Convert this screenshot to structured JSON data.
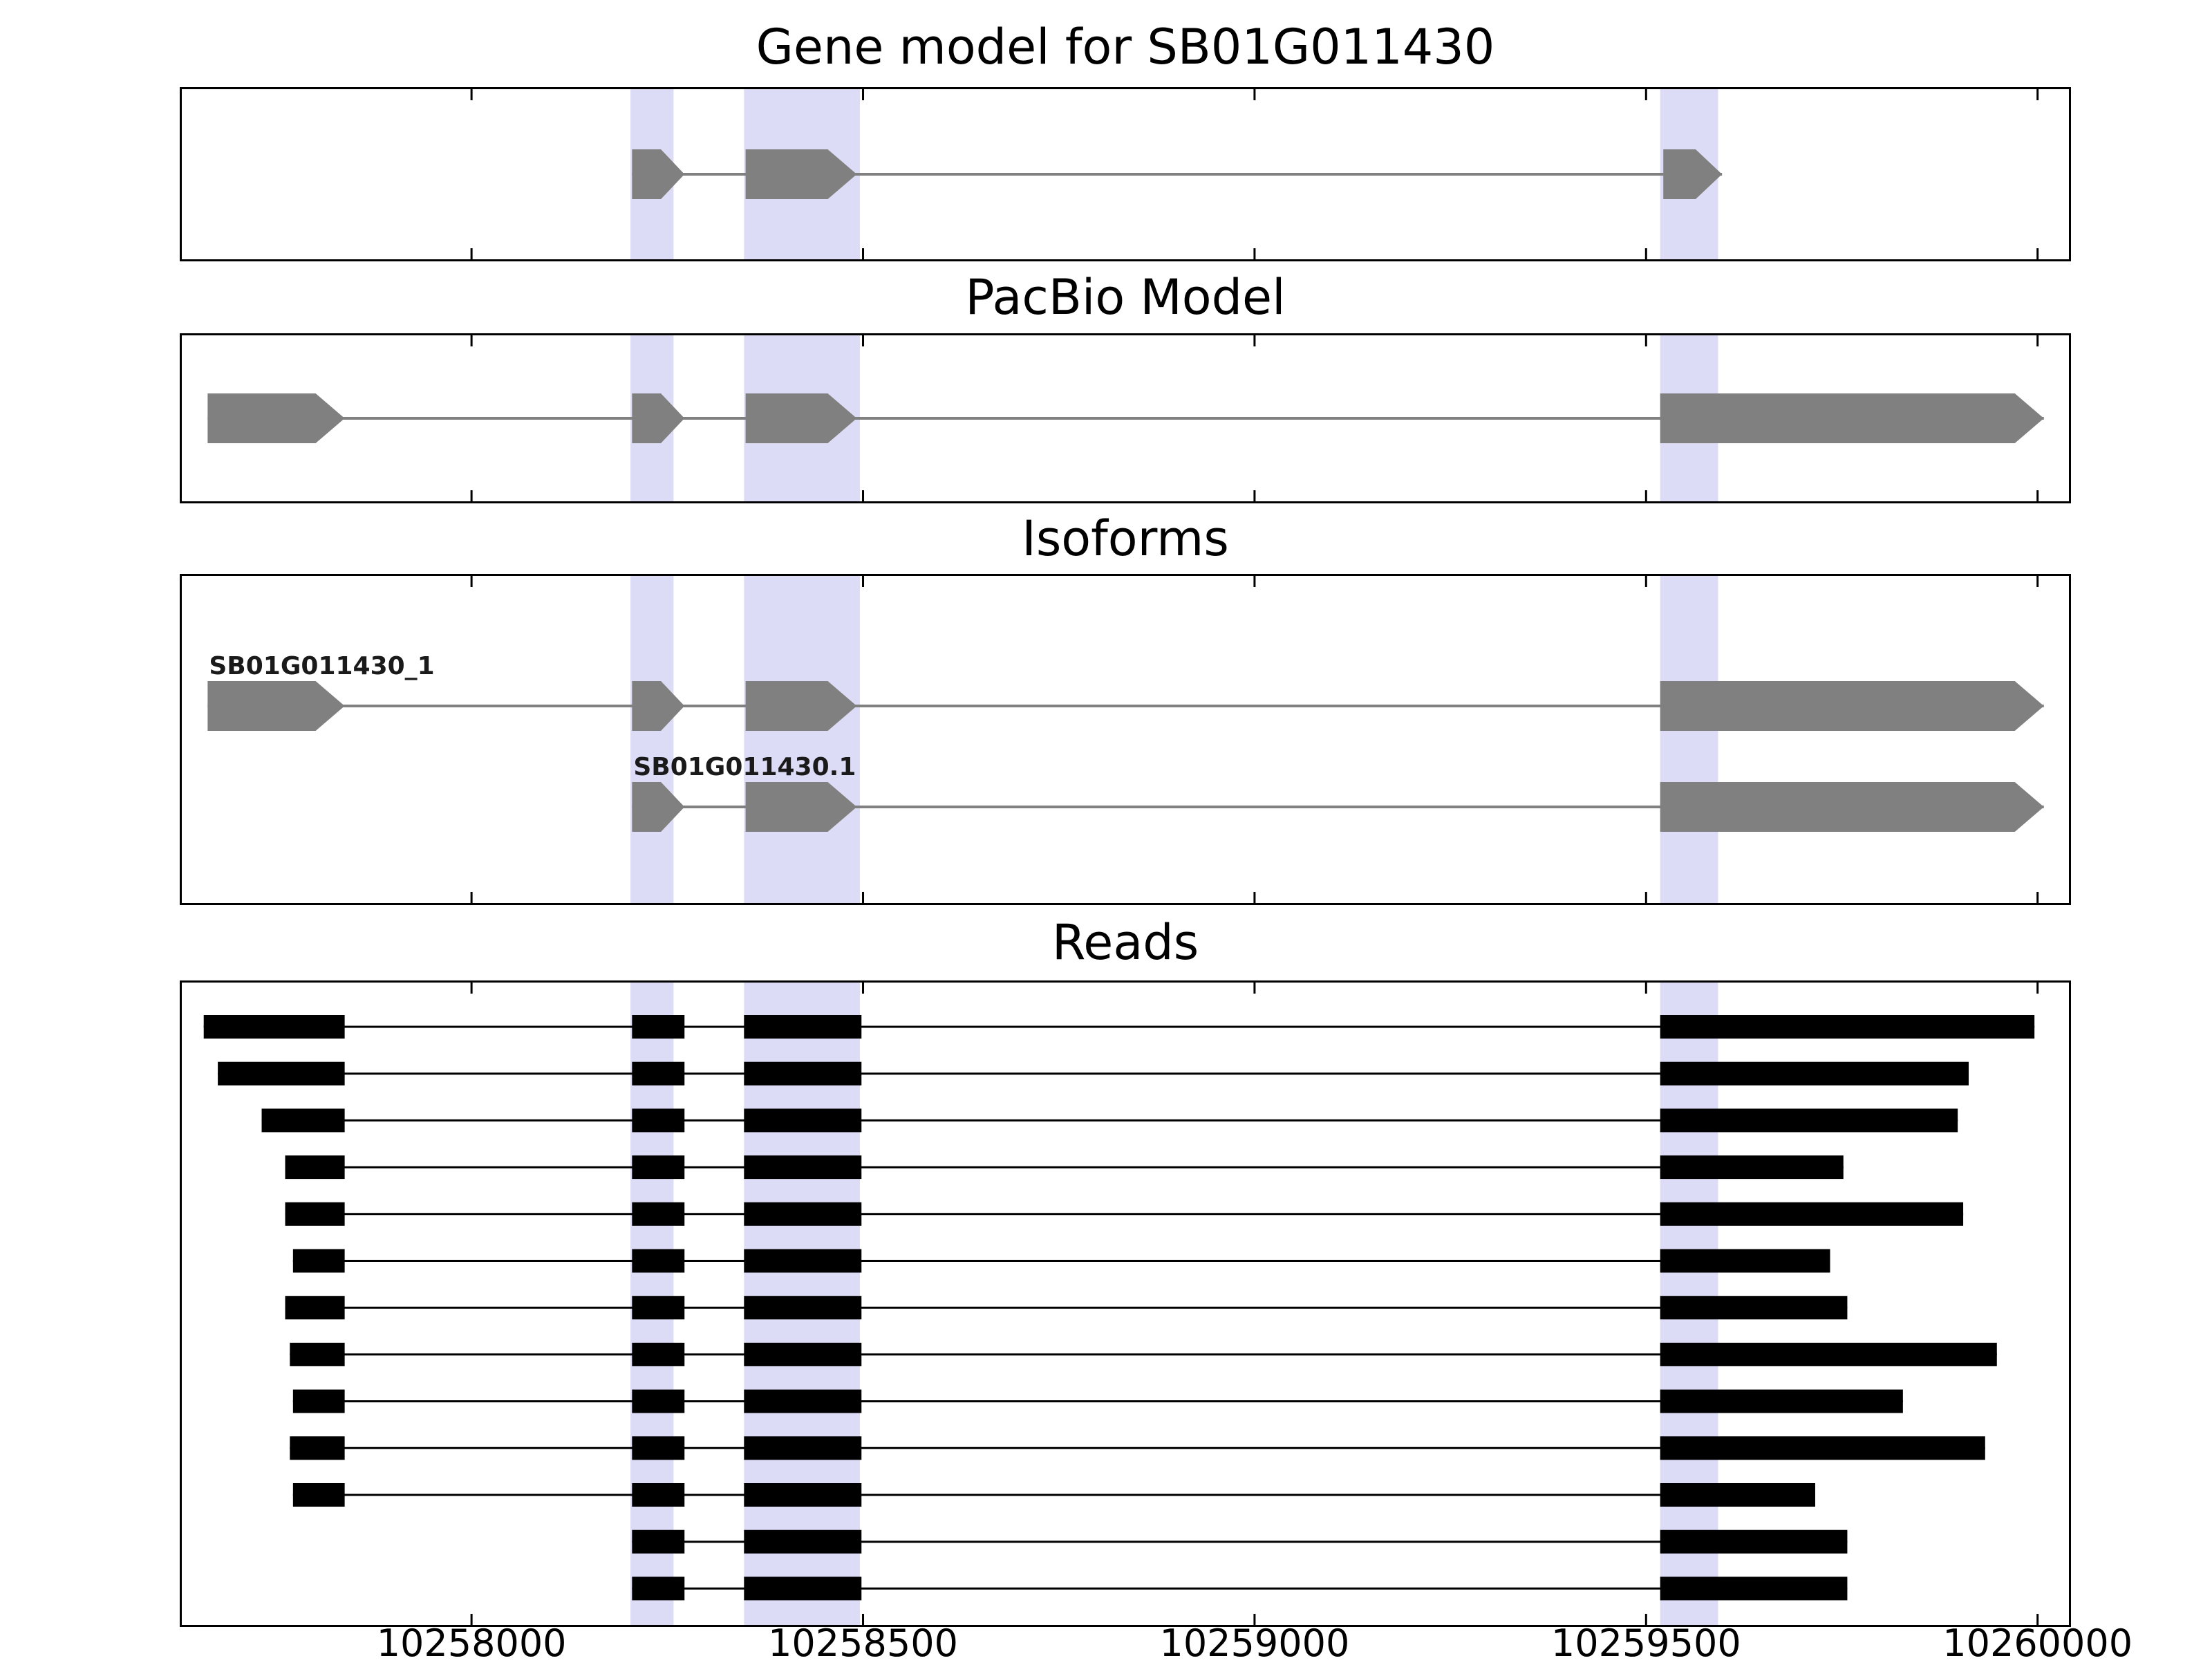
{
  "figure": {
    "background": "#ffffff"
  },
  "chart_data": {
    "type": "gene-model-tracks",
    "xlim": [
      10257630,
      10260040
    ],
    "xticks": [
      10258000,
      10258500,
      10259000,
      10259500,
      10260000
    ],
    "x_tick_labels": [
      "10258000",
      "10258500",
      "10259000",
      "10259500",
      "10260000"
    ],
    "highlight_color": "#dddcf6",
    "highlight_regions": [
      [
        10258203,
        10258258
      ],
      [
        10258348,
        10258496
      ],
      [
        10259518,
        10259592
      ]
    ],
    "track_color": "#808080",
    "read_color": "#000000",
    "panels": [
      {
        "title": "Gene model for SB01G011430",
        "type": "transcripts",
        "transcripts": [
          {
            "label": "",
            "line": [
              10258205,
              10259597
            ],
            "exons": [
              [
                10258205,
                10258272
              ],
              [
                10258350,
                10258492
              ],
              [
                10259522,
                10259597
              ]
            ]
          }
        ]
      },
      {
        "title": "PacBio Model",
        "type": "transcripts",
        "transcripts": [
          {
            "label": "",
            "line": [
              10257663,
              10260008
            ],
            "exons": [
              [
                10257663,
                10257838
              ],
              [
                10258205,
                10258272
              ],
              [
                10258350,
                10258492
              ],
              [
                10259518,
                10260008
              ]
            ]
          }
        ]
      },
      {
        "title": "Isoforms",
        "type": "transcripts",
        "transcripts": [
          {
            "label": "SB01G011430_1",
            "line": [
              10257663,
              10260008
            ],
            "exons": [
              [
                10257663,
                10257838
              ],
              [
                10258205,
                10258272
              ],
              [
                10258350,
                10258492
              ],
              [
                10259518,
                10260008
              ]
            ]
          },
          {
            "label": "SB01G011430.1",
            "line": [
              10258205,
              10260008
            ],
            "exons": [
              [
                10258205,
                10258272
              ],
              [
                10258350,
                10258492
              ],
              [
                10259518,
                10260008
              ]
            ]
          }
        ]
      },
      {
        "title": "Reads",
        "type": "reads",
        "reads": [
          {
            "blocks": [
              [
                10257658,
                10257838
              ],
              [
                10258205,
                10258272
              ],
              [
                10258348,
                10258498
              ],
              [
                10259518,
                10259996
              ]
            ]
          },
          {
            "blocks": [
              [
                10257676,
                10257838
              ],
              [
                10258205,
                10258272
              ],
              [
                10258348,
                10258498
              ],
              [
                10259518,
                10259912
              ]
            ]
          },
          {
            "blocks": [
              [
                10257732,
                10257838
              ],
              [
                10258205,
                10258272
              ],
              [
                10258348,
                10258498
              ],
              [
                10259518,
                10259898
              ]
            ]
          },
          {
            "blocks": [
              [
                10257762,
                10257838
              ],
              [
                10258205,
                10258272
              ],
              [
                10258348,
                10258498
              ],
              [
                10259518,
                10259752
              ]
            ]
          },
          {
            "blocks": [
              [
                10257762,
                10257838
              ],
              [
                10258205,
                10258272
              ],
              [
                10258348,
                10258498
              ],
              [
                10259518,
                10259905
              ]
            ]
          },
          {
            "blocks": [
              [
                10257772,
                10257838
              ],
              [
                10258205,
                10258272
              ],
              [
                10258348,
                10258498
              ],
              [
                10259518,
                10259735
              ]
            ]
          },
          {
            "blocks": [
              [
                10257762,
                10257838
              ],
              [
                10258205,
                10258272
              ],
              [
                10258348,
                10258498
              ],
              [
                10259518,
                10259757
              ]
            ]
          },
          {
            "blocks": [
              [
                10257768,
                10257838
              ],
              [
                10258205,
                10258272
              ],
              [
                10258348,
                10258498
              ],
              [
                10259518,
                10259948
              ]
            ]
          },
          {
            "blocks": [
              [
                10257772,
                10257838
              ],
              [
                10258205,
                10258272
              ],
              [
                10258348,
                10258498
              ],
              [
                10259518,
                10259828
              ]
            ]
          },
          {
            "blocks": [
              [
                10257768,
                10257838
              ],
              [
                10258205,
                10258272
              ],
              [
                10258348,
                10258498
              ],
              [
                10259518,
                10259933
              ]
            ]
          },
          {
            "blocks": [
              [
                10257772,
                10257838
              ],
              [
                10258205,
                10258272
              ],
              [
                10258348,
                10258498
              ],
              [
                10259518,
                10259716
              ]
            ]
          },
          {
            "blocks": [
              [
                10258205,
                10258272
              ],
              [
                10258348,
                10258498
              ],
              [
                10259518,
                10259757
              ]
            ]
          },
          {
            "blocks": [
              [
                10258205,
                10258272
              ],
              [
                10258348,
                10258498
              ],
              [
                10259518,
                10259757
              ]
            ]
          }
        ]
      }
    ]
  }
}
